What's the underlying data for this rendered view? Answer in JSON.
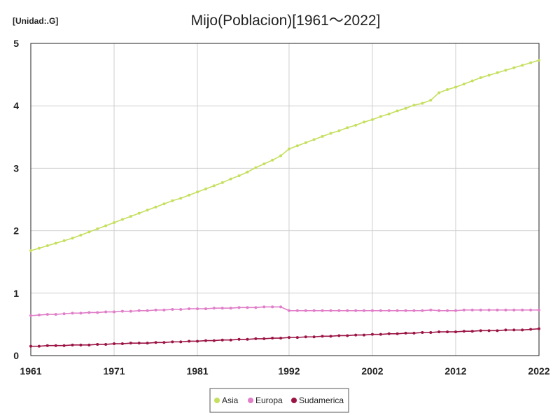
{
  "chart_data": {
    "type": "line",
    "title": "Mijo(Poblacion)[1961～2022]",
    "unit_label": "[Unidad:.G]",
    "xlabel": "",
    "ylabel": "",
    "xlim": [
      1961,
      2022
    ],
    "ylim": [
      0,
      5
    ],
    "x_ticks": [
      "1961",
      "1971",
      "1981",
      "1992",
      "2002",
      "2012",
      "2022"
    ],
    "y_ticks": [
      "0",
      "1",
      "2",
      "3",
      "4",
      "5"
    ],
    "grid": true,
    "legend_position": "bottom",
    "x": [
      1961,
      1962,
      1963,
      1964,
      1965,
      1966,
      1967,
      1968,
      1969,
      1970,
      1971,
      1972,
      1973,
      1974,
      1975,
      1976,
      1977,
      1978,
      1979,
      1980,
      1981,
      1982,
      1983,
      1984,
      1985,
      1986,
      1987,
      1988,
      1989,
      1990,
      1991,
      1992,
      1993,
      1994,
      1995,
      1996,
      1997,
      1998,
      1999,
      2000,
      2001,
      2002,
      2003,
      2004,
      2005,
      2006,
      2007,
      2008,
      2009,
      2010,
      2011,
      2012,
      2013,
      2014,
      2015,
      2016,
      2017,
      2018,
      2019,
      2020,
      2021,
      2022
    ],
    "series": [
      {
        "name": "Asia",
        "color": "#c5df5f",
        "values": [
          1.68,
          1.72,
          1.76,
          1.8,
          1.84,
          1.88,
          1.93,
          1.98,
          2.03,
          2.08,
          2.13,
          2.18,
          2.23,
          2.28,
          2.33,
          2.38,
          2.43,
          2.48,
          2.52,
          2.57,
          2.62,
          2.67,
          2.72,
          2.77,
          2.83,
          2.88,
          2.94,
          3.01,
          3.07,
          3.13,
          3.2,
          3.31,
          3.36,
          3.41,
          3.46,
          3.51,
          3.56,
          3.6,
          3.65,
          3.69,
          3.74,
          3.78,
          3.83,
          3.87,
          3.92,
          3.96,
          4.01,
          4.04,
          4.09,
          4.21,
          4.26,
          4.3,
          4.35,
          4.4,
          4.45,
          4.49,
          4.53,
          4.57,
          4.61,
          4.65,
          4.69,
          4.73
        ]
      },
      {
        "name": "Europa",
        "color": "#e07ec8",
        "values": [
          0.64,
          0.65,
          0.66,
          0.66,
          0.67,
          0.68,
          0.68,
          0.69,
          0.69,
          0.7,
          0.7,
          0.71,
          0.71,
          0.72,
          0.72,
          0.73,
          0.73,
          0.74,
          0.74,
          0.75,
          0.75,
          0.75,
          0.76,
          0.76,
          0.76,
          0.77,
          0.77,
          0.77,
          0.78,
          0.78,
          0.78,
          0.72,
          0.72,
          0.72,
          0.72,
          0.72,
          0.72,
          0.72,
          0.72,
          0.72,
          0.72,
          0.72,
          0.72,
          0.72,
          0.72,
          0.72,
          0.72,
          0.72,
          0.73,
          0.72,
          0.72,
          0.72,
          0.73,
          0.73,
          0.73,
          0.73,
          0.73,
          0.73,
          0.73,
          0.73,
          0.73,
          0.73
        ]
      },
      {
        "name": "Sudamerica",
        "color": "#9b1444",
        "values": [
          0.15,
          0.15,
          0.16,
          0.16,
          0.16,
          0.17,
          0.17,
          0.17,
          0.18,
          0.18,
          0.19,
          0.19,
          0.2,
          0.2,
          0.2,
          0.21,
          0.21,
          0.22,
          0.22,
          0.23,
          0.23,
          0.24,
          0.24,
          0.25,
          0.25,
          0.26,
          0.26,
          0.27,
          0.27,
          0.28,
          0.28,
          0.29,
          0.29,
          0.3,
          0.3,
          0.31,
          0.31,
          0.32,
          0.32,
          0.33,
          0.33,
          0.34,
          0.34,
          0.35,
          0.35,
          0.36,
          0.36,
          0.37,
          0.37,
          0.38,
          0.38,
          0.38,
          0.39,
          0.39,
          0.4,
          0.4,
          0.4,
          0.41,
          0.41,
          0.41,
          0.42,
          0.43
        ]
      }
    ]
  }
}
